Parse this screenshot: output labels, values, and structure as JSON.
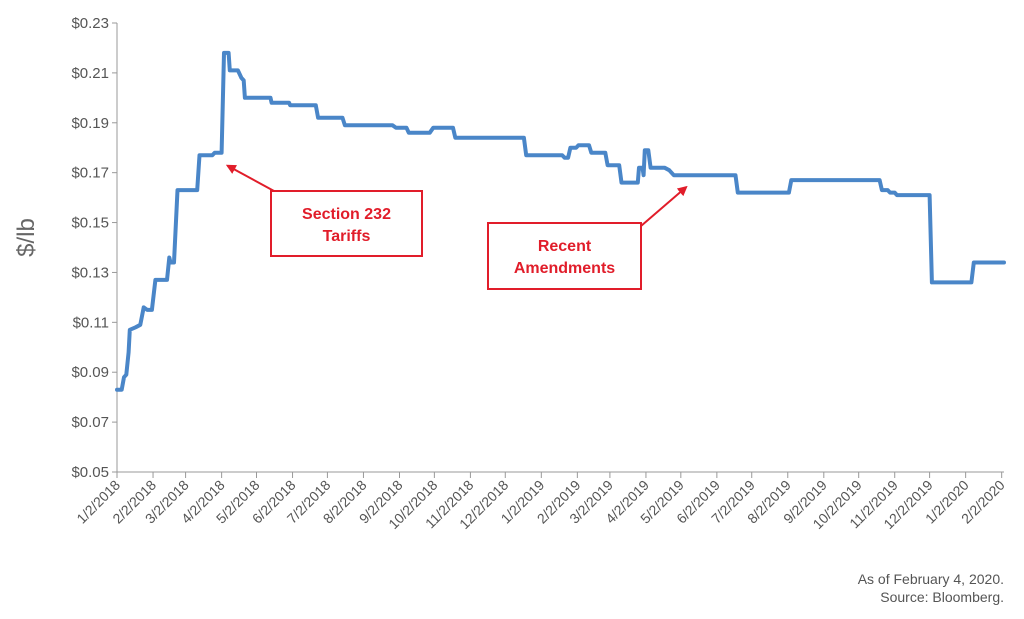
{
  "chart_data": {
    "type": "line",
    "ylabel": "$/lb",
    "ylim": [
      0.05,
      0.23
    ],
    "y_ticks": [
      "$0.05",
      "$0.07",
      "$0.09",
      "$0.11",
      "$0.13",
      "$0.15",
      "$0.17",
      "$0.19",
      "$0.21",
      "$0.23"
    ],
    "x_tick_labels": [
      "1/2/2018",
      "2/2/2018",
      "3/2/2018",
      "4/2/2018",
      "5/2/2018",
      "6/2/2018",
      "7/2/2018",
      "8/2/2018",
      "9/2/2018",
      "10/2/2018",
      "11/2/2018",
      "12/2/2018",
      "1/2/2019",
      "2/2/2019",
      "3/2/2019",
      "4/2/2019",
      "5/2/2019",
      "6/2/2019",
      "7/2/2019",
      "8/2/2019",
      "9/2/2019",
      "10/2/2019",
      "11/2/2019",
      "12/2/2019",
      "1/2/2020",
      "2/2/2020"
    ],
    "grid": false,
    "line_color": "#4a86c8",
    "series": [
      {
        "points": [
          [
            "2018-01-02",
            0.083
          ],
          [
            "2018-01-06",
            0.083
          ],
          [
            "2018-01-08",
            0.088
          ],
          [
            "2018-01-10",
            0.089
          ],
          [
            "2018-01-12",
            0.098
          ],
          [
            "2018-01-13",
            0.107
          ],
          [
            "2018-01-18",
            0.108
          ],
          [
            "2018-01-22",
            0.109
          ],
          [
            "2018-01-25",
            0.116
          ],
          [
            "2018-01-28",
            0.115
          ],
          [
            "2018-02-01",
            0.115
          ],
          [
            "2018-02-04",
            0.127
          ],
          [
            "2018-02-14",
            0.127
          ],
          [
            "2018-02-16",
            0.136
          ],
          [
            "2018-02-17",
            0.134
          ],
          [
            "2018-02-20",
            0.134
          ],
          [
            "2018-02-23",
            0.163
          ],
          [
            "2018-03-12",
            0.163
          ],
          [
            "2018-03-14",
            0.177
          ],
          [
            "2018-03-25",
            0.177
          ],
          [
            "2018-03-27",
            0.178
          ],
          [
            "2018-04-02",
            0.178
          ],
          [
            "2018-04-04",
            0.218
          ],
          [
            "2018-04-08",
            0.218
          ],
          [
            "2018-04-09",
            0.211
          ],
          [
            "2018-04-16",
            0.211
          ],
          [
            "2018-04-19",
            0.208
          ],
          [
            "2018-04-21",
            0.207
          ],
          [
            "2018-04-22",
            0.2
          ],
          [
            "2018-05-14",
            0.2
          ],
          [
            "2018-05-15",
            0.198
          ],
          [
            "2018-05-23",
            0.198
          ],
          [
            "2018-05-24",
            0.198
          ],
          [
            "2018-05-30",
            0.198
          ],
          [
            "2018-05-31",
            0.197
          ],
          [
            "2018-06-22",
            0.197
          ],
          [
            "2018-06-24",
            0.192
          ],
          [
            "2018-07-15",
            0.192
          ],
          [
            "2018-07-17",
            0.189
          ],
          [
            "2018-08-27",
            0.189
          ],
          [
            "2018-08-30",
            0.188
          ],
          [
            "2018-09-08",
            0.188
          ],
          [
            "2018-09-10",
            0.186
          ],
          [
            "2018-09-28",
            0.186
          ],
          [
            "2018-10-01",
            0.188
          ],
          [
            "2018-10-18",
            0.188
          ],
          [
            "2018-10-20",
            0.184
          ],
          [
            "2018-12-18",
            0.184
          ],
          [
            "2018-12-20",
            0.177
          ],
          [
            "2019-01-20",
            0.177
          ],
          [
            "2019-01-22",
            0.176
          ],
          [
            "2019-01-25",
            0.176
          ],
          [
            "2019-01-27",
            0.18
          ],
          [
            "2019-02-01",
            0.18
          ],
          [
            "2019-02-03",
            0.181
          ],
          [
            "2019-02-12",
            0.181
          ],
          [
            "2019-02-14",
            0.178
          ],
          [
            "2019-02-26",
            0.178
          ],
          [
            "2019-02-28",
            0.173
          ],
          [
            "2019-03-10",
            0.173
          ],
          [
            "2019-03-12",
            0.166
          ],
          [
            "2019-03-26",
            0.166
          ],
          [
            "2019-03-27",
            0.172
          ],
          [
            "2019-03-30",
            0.172
          ],
          [
            "2019-03-31",
            0.169
          ],
          [
            "2019-04-01",
            0.179
          ],
          [
            "2019-04-04",
            0.179
          ],
          [
            "2019-04-06",
            0.172
          ],
          [
            "2019-04-18",
            0.172
          ],
          [
            "2019-04-22",
            0.171
          ],
          [
            "2019-04-26",
            0.169
          ],
          [
            "2019-06-18",
            0.169
          ],
          [
            "2019-06-20",
            0.162
          ],
          [
            "2019-08-03",
            0.162
          ],
          [
            "2019-08-05",
            0.167
          ],
          [
            "2019-10-20",
            0.167
          ],
          [
            "2019-10-22",
            0.163
          ],
          [
            "2019-10-27",
            0.163
          ],
          [
            "2019-10-29",
            0.162
          ],
          [
            "2019-11-02",
            0.162
          ],
          [
            "2019-11-04",
            0.161
          ],
          [
            "2019-12-02",
            0.161
          ],
          [
            "2019-12-04",
            0.126
          ],
          [
            "2020-01-07",
            0.126
          ],
          [
            "2020-01-09",
            0.134
          ],
          [
            "2020-02-04",
            0.134
          ]
        ]
      }
    ],
    "annotations": [
      {
        "lines": [
          "Section 232",
          "Tariffs"
        ],
        "target_date": "2018-04-02",
        "target_value": 0.176
      },
      {
        "lines": [
          "Recent",
          "Amendments"
        ],
        "target_date": "2019-05-10",
        "target_value": 0.169
      }
    ],
    "annotation_color": "#e11d2a"
  },
  "footnote": {
    "line1": "As of February 4, 2020.",
    "line2": "Source: Bloomberg."
  }
}
